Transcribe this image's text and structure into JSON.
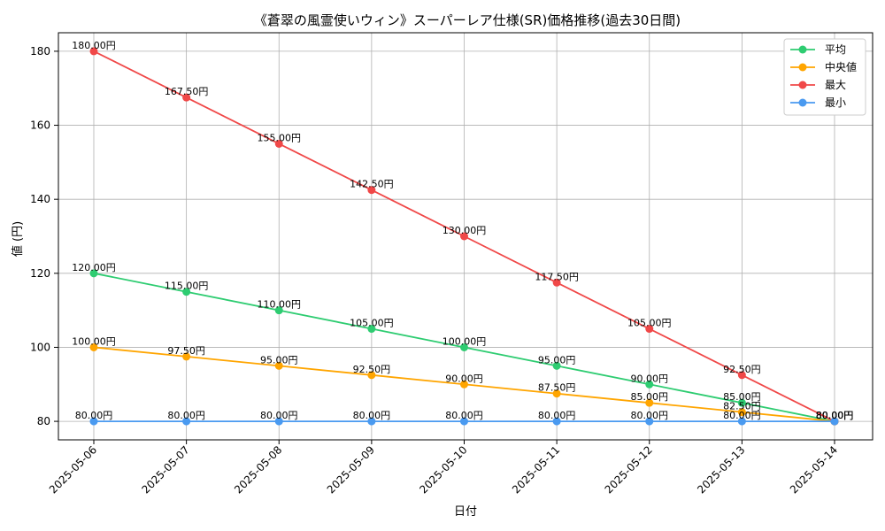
{
  "chart_data": {
    "type": "line",
    "title": "《蒼翠の風霊使いウィン》スーパーレア仕様(SR)価格推移(過去30日間)",
    "xlabel": "日付",
    "ylabel": "値 (円)",
    "categories": [
      "2025-05-06",
      "2025-05-07",
      "2025-05-08",
      "2025-05-09",
      "2025-05-10",
      "2025-05-11",
      "2025-05-12",
      "2025-05-13",
      "2025-05-14"
    ],
    "ylim": [
      75,
      185
    ],
    "yticks": [
      80,
      100,
      120,
      140,
      160,
      180
    ],
    "grid": true,
    "legend_position": "top-right",
    "series": [
      {
        "name": "平均",
        "color": "#2ecc71",
        "values": [
          120,
          115,
          110,
          105,
          100,
          95,
          90,
          85,
          80
        ],
        "labels": [
          "120.00円",
          "115.00円",
          "110.00円",
          "105.00円",
          "100.00円",
          "95.00円",
          "90.00円",
          "85.00円",
          "80.00円"
        ]
      },
      {
        "name": "中央値",
        "color": "#ffa500",
        "values": [
          100,
          97.5,
          95,
          92.5,
          90,
          87.5,
          85,
          82.5,
          80
        ],
        "labels": [
          "100.00円",
          "97.50円",
          "95.00円",
          "92.50円",
          "90.00円",
          "87.50円",
          "85.00円",
          "82.50円",
          "80.00円"
        ]
      },
      {
        "name": "最大",
        "color": "#f04848",
        "values": [
          180,
          167.5,
          155,
          142.5,
          130,
          117.5,
          105,
          92.5,
          80
        ],
        "labels": [
          "180.00円",
          "167.50円",
          "155.00円",
          "142.50円",
          "130.00円",
          "117.50円",
          "105.00円",
          "92.50円",
          "80.00円"
        ]
      },
      {
        "name": "最小",
        "color": "#4a9af0",
        "values": [
          80,
          80,
          80,
          80,
          80,
          80,
          80,
          80,
          80
        ],
        "labels": [
          "80.00円",
          "80.00円",
          "80.00円",
          "80.00円",
          "80.00円",
          "80.00円",
          "80.00円",
          "80.00円",
          "80.00円"
        ]
      }
    ]
  }
}
